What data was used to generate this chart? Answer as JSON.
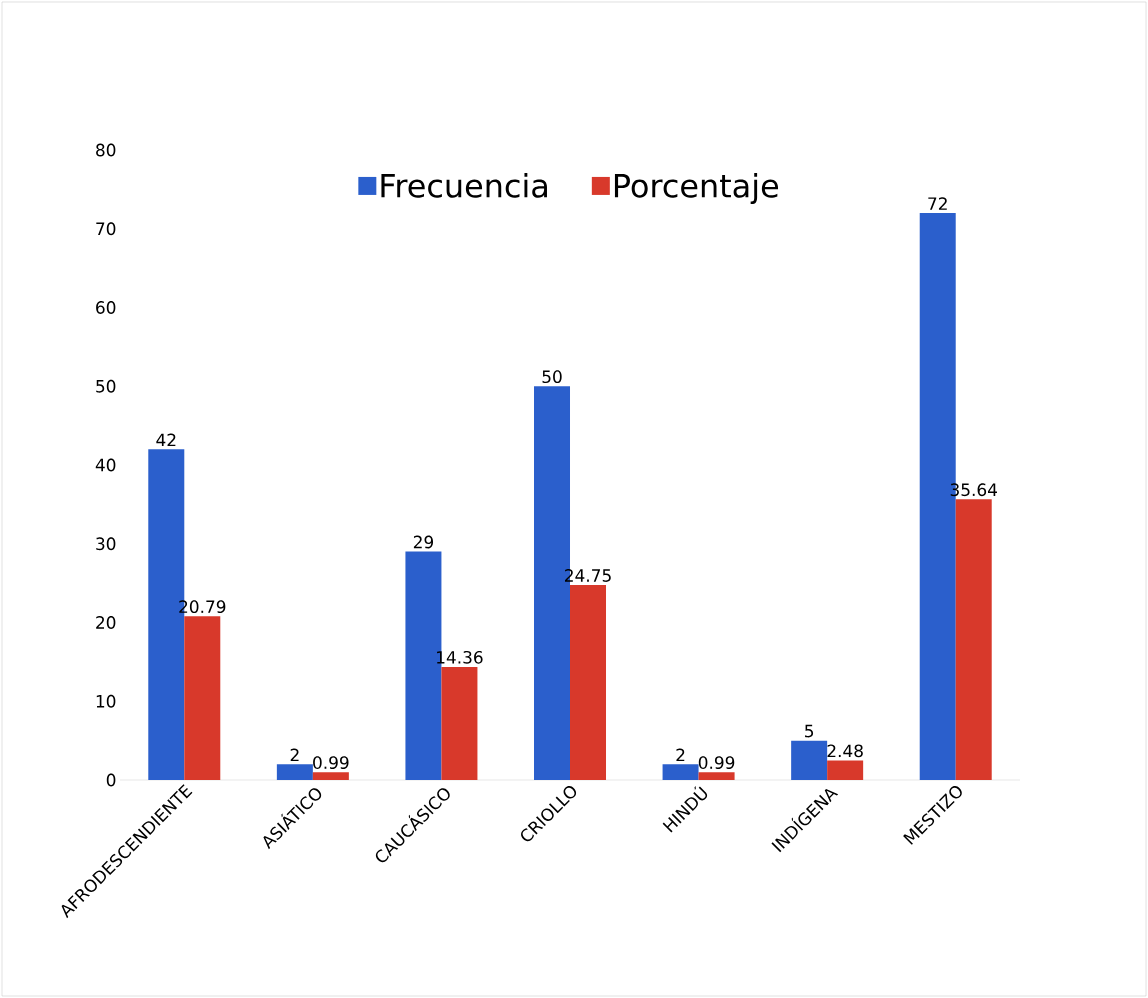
{
  "chart_data": {
    "type": "bar",
    "categories": [
      "AFRODESCENDIENTE",
      "ASIÁTICO",
      "CAUCÁSICO",
      "CRIOLLO",
      "HINDÚ",
      "INDÍGENA",
      "MESTIZO"
    ],
    "series": [
      {
        "name": "Frecuencia",
        "color": "#2b5fcc",
        "values": [
          42,
          2,
          29,
          50,
          2,
          5,
          72
        ]
      },
      {
        "name": "Porcentaje",
        "color": "#d8392b",
        "values": [
          20.79,
          0.99,
          14.36,
          24.75,
          0.99,
          2.48,
          35.64
        ]
      }
    ],
    "ylim": [
      0,
      80
    ],
    "yticks": [
      0,
      10,
      20,
      30,
      40,
      50,
      60,
      70,
      80
    ],
    "data_labels": true,
    "legend": "top"
  }
}
